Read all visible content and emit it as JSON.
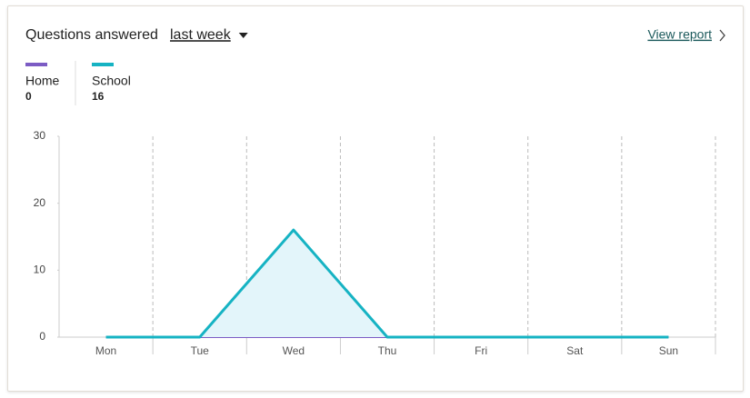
{
  "header": {
    "title": "Questions answered",
    "period": "last week",
    "link": "View report"
  },
  "chart_data": {
    "type": "line",
    "categories": [
      "Mon",
      "Tue",
      "Wed",
      "Thu",
      "Fri",
      "Sat",
      "Sun"
    ],
    "series": [
      {
        "name": "Home",
        "color": "#7c5cc4",
        "total": 0,
        "values": [
          0,
          0,
          0,
          0,
          0,
          0,
          0
        ]
      },
      {
        "name": "School",
        "color": "#16b3c3",
        "total": 16,
        "values": [
          0,
          0,
          16,
          0,
          0,
          0,
          0
        ],
        "fill": "#e3f5fa"
      }
    ],
    "ylim": [
      0,
      30
    ],
    "yticks": [
      0,
      10,
      20,
      30
    ]
  }
}
